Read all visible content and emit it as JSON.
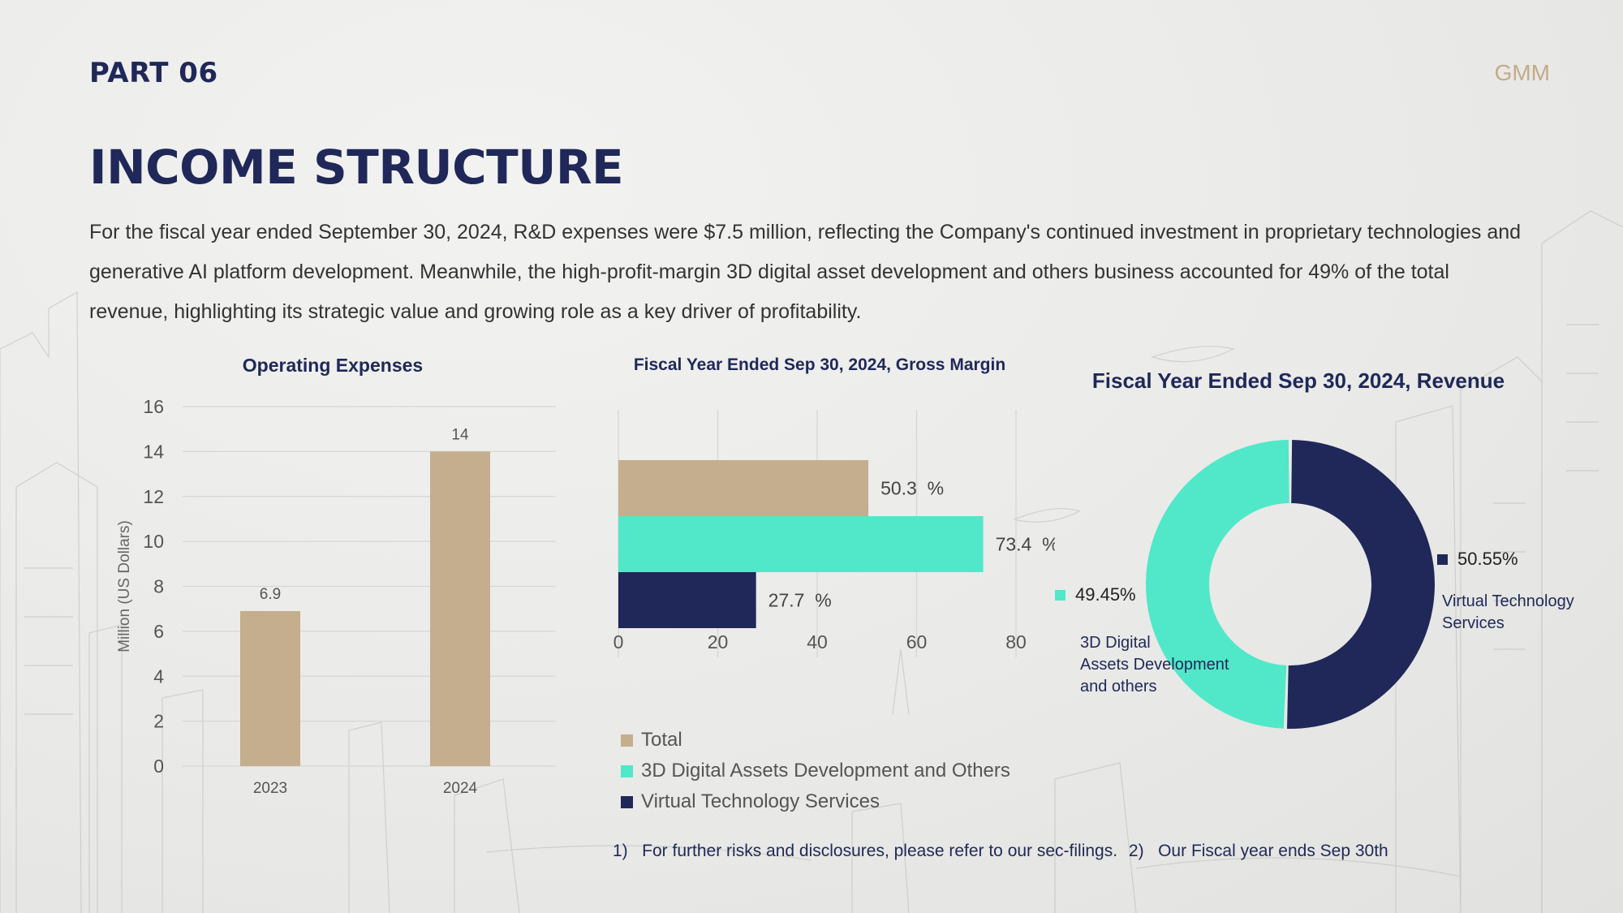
{
  "header": {
    "part": "PART 06",
    "brand": "GMM",
    "title": "INCOME STRUCTURE",
    "intro": "For the fiscal year ended September 30, 2024, R&D expenses were $7.5 million, reflecting the Company's continued investment in proprietary technologies and generative AI platform development. Meanwhile, the high-profit-margin 3D digital asset development and others business accounted for 49% of the total revenue, highlighting its strategic value and growing role as a key driver of profitability."
  },
  "colors": {
    "navy": "#1f2858",
    "tan": "#c4ae8d",
    "teal": "#50e8c8"
  },
  "chart_data": [
    {
      "type": "bar",
      "title": "Operating Expenses",
      "ylabel": "Million (US Dollars)",
      "categories": [
        "2023",
        "2024"
      ],
      "values": [
        6.9,
        14
      ],
      "data_labels": [
        "6.9",
        "14"
      ],
      "ylim": [
        0,
        16
      ],
      "yticks": [
        0,
        2,
        4,
        6,
        8,
        10,
        12,
        14,
        16
      ],
      "grid": true
    },
    {
      "type": "bar",
      "orientation": "horizontal",
      "title": "Fiscal Year Ended Sep 30, 2024, Gross Margin",
      "series": [
        {
          "name": "Total",
          "value": 50.3,
          "label": "50.3",
          "unit": "%"
        },
        {
          "name": "3D Digital Assets Development and Others",
          "value": 73.4,
          "label": "73.4",
          "unit": "%"
        },
        {
          "name": "Virtual Technology Services",
          "value": 27.7,
          "label": "27.7",
          "unit": "%"
        }
      ],
      "xlim": [
        0,
        80
      ],
      "xticks": [
        0,
        20,
        40,
        60,
        80
      ],
      "grid": true,
      "legend": "bottom"
    },
    {
      "type": "pie",
      "donut": true,
      "title": "Fiscal Year Ended Sep 30, 2024, Revenue",
      "slices": [
        {
          "name_lines": [
            "Virtual Technology",
            "Services"
          ],
          "value": 50.55,
          "label": "50.55%"
        },
        {
          "name_lines": [
            "3D Digital",
            "Assets Development",
            "and others"
          ],
          "value": 49.45,
          "label": "49.45%"
        }
      ]
    }
  ],
  "footnotes": [
    "1)   For further risks and disclosures, please refer to our sec-filings.",
    "2)   Our Fiscal year ends Sep 30th"
  ]
}
